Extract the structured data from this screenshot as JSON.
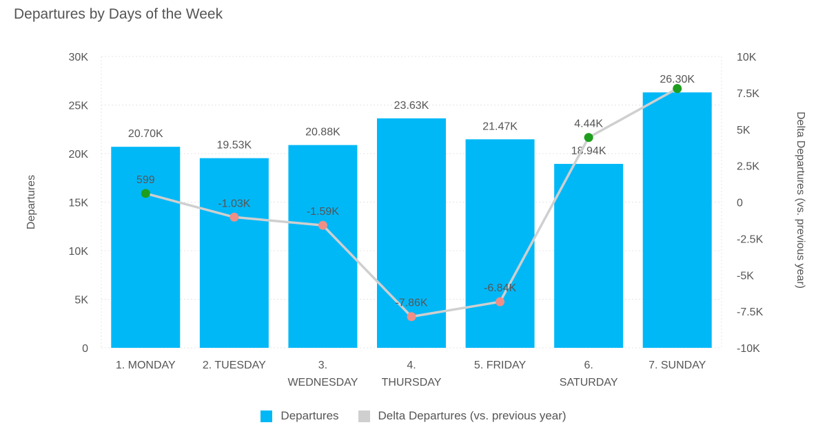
{
  "title": "Departures by Days of the Week",
  "colors": {
    "bar": "#01b8f7",
    "line": "#cfcfcf",
    "positive": "#1e9e1e",
    "negative": "#f08f86",
    "text": "#555555",
    "grid": "#e4e4e4"
  },
  "chart_data": {
    "type": "bar",
    "title": "Departures by Days of the Week",
    "categories": [
      "1. MONDAY",
      "2. TUESDAY",
      "3. WEDNESDAY",
      "4. THURSDAY",
      "5. FRIDAY",
      "6. SATURDAY",
      "7. SUNDAY"
    ],
    "category_lines": [
      [
        "1. MONDAY"
      ],
      [
        "2. TUESDAY"
      ],
      [
        "3.",
        "WEDNESDAY"
      ],
      [
        "4.",
        "THURSDAY"
      ],
      [
        "5. FRIDAY"
      ],
      [
        "6.",
        "SATURDAY"
      ],
      [
        "7. SUNDAY"
      ]
    ],
    "series": [
      {
        "name": "Departures",
        "type": "bar",
        "axis": "left",
        "values": [
          20700,
          19530,
          20880,
          23630,
          21470,
          18940,
          26300
        ],
        "labels": [
          "20.70K",
          "19.53K",
          "20.88K",
          "23.63K",
          "21.47K",
          "18.94K",
          "26.30K"
        ]
      },
      {
        "name": "Delta Departures (vs. previous year)",
        "type": "line",
        "axis": "right",
        "values": [
          599,
          -1030,
          -1590,
          -7860,
          -6840,
          4440,
          7800
        ],
        "labels": [
          "599",
          "-1.03K",
          "-1.59K",
          "-7.86K",
          "-6.84K",
          "4.44K",
          ""
        ]
      }
    ],
    "ylabel": "Departures",
    "ylabel_right": "Delta Departures (vs. previous year)",
    "ylim": [
      0,
      30000
    ],
    "yticks": [
      0,
      5000,
      10000,
      15000,
      20000,
      25000,
      30000
    ],
    "ytick_labels": [
      "0",
      "5K",
      "10K",
      "15K",
      "20K",
      "25K",
      "30K"
    ],
    "ylim_right": [
      -10000,
      10000
    ],
    "yticks_right": [
      -10000,
      -7500,
      -5000,
      -2500,
      0,
      2500,
      5000,
      7500,
      10000
    ],
    "ytick_labels_right": [
      "-10K",
      "-7.5K",
      "-5K",
      "-2.5K",
      "0",
      "2.5K",
      "5K",
      "7.5K",
      "10K"
    ],
    "grid": true,
    "legend": "bottom-center"
  }
}
